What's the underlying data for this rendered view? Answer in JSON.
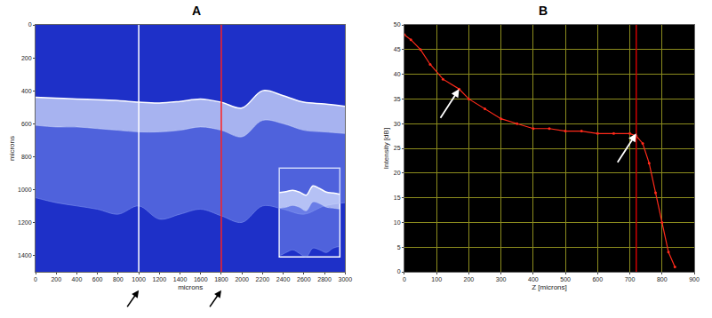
{
  "chart_data": [
    {
      "panel": "A",
      "type": "area",
      "x_label": "microns",
      "y_label": "microns",
      "x": [
        0,
        200,
        400,
        600,
        800,
        1000,
        1200,
        1400,
        1600,
        1800,
        2000,
        2200,
        2400,
        2600,
        2800,
        3000
      ],
      "series": [
        {
          "color": "#ffffff",
          "values": [
            440,
            445,
            450,
            455,
            460,
            470,
            475,
            465,
            450,
            470,
            505,
            400,
            430,
            470,
            480,
            495
          ]
        },
        {
          "color": "#dce6ff",
          "values": [
            610,
            620,
            620,
            630,
            640,
            650,
            650,
            640,
            620,
            640,
            680,
            580,
            600,
            640,
            650,
            660
          ]
        },
        {
          "color": "#8ca0f5",
          "values": [
            1050,
            1080,
            1100,
            1120,
            1150,
            1100,
            1180,
            1150,
            1120,
            1160,
            1200,
            1100,
            1120,
            1150,
            1100,
            1080
          ]
        }
      ],
      "xlim": [
        0,
        3000
      ],
      "xticks": [
        0,
        200,
        400,
        600,
        800,
        1000,
        1200,
        1400,
        1600,
        1800,
        2000,
        2200,
        2400,
        2600,
        2800,
        3000
      ],
      "ylim": [
        0,
        1500
      ],
      "yticks": [
        0,
        200,
        400,
        600,
        800,
        1000,
        1200,
        1400
      ],
      "grid": false,
      "vlines": [
        {
          "x": 1000,
          "color": "#ffffff"
        },
        {
          "x": 1800,
          "color": "#ff2020"
        }
      ],
      "inset": {
        "xlim": [
          1200,
          3000
        ],
        "ylim": [
          200,
          1200
        ],
        "tick_labels": false
      }
    },
    {
      "panel": "B",
      "type": "line",
      "x_label": "Z [microns]",
      "y_label": "Intensity [dB]",
      "x": [
        0,
        20,
        50,
        80,
        120,
        170,
        200,
        250,
        300,
        350,
        400,
        450,
        500,
        550,
        600,
        650,
        700,
        720,
        740,
        760,
        780,
        800,
        820,
        840
      ],
      "values": [
        48,
        47,
        45,
        42,
        39,
        37,
        35,
        33,
        31,
        30,
        29,
        29,
        28.5,
        28.5,
        28,
        28,
        28,
        27.5,
        26,
        22,
        16,
        10,
        4,
        1
      ],
      "color": "#ff2a1a",
      "marker": "circle",
      "xlim": [
        0,
        900
      ],
      "xticks": [
        0,
        100,
        200,
        300,
        400,
        500,
        600,
        700,
        800,
        900
      ],
      "ylim": [
        0,
        50
      ],
      "yticks": [
        0,
        5,
        10,
        15,
        20,
        25,
        30,
        35,
        40,
        45,
        50
      ],
      "grid": true,
      "vlines": [
        {
          "x": 720,
          "color": "#cc0000"
        }
      ],
      "arrows": [
        {
          "x": 170,
          "y": 37
        },
        {
          "x": 720,
          "y": 28
        }
      ]
    }
  ]
}
